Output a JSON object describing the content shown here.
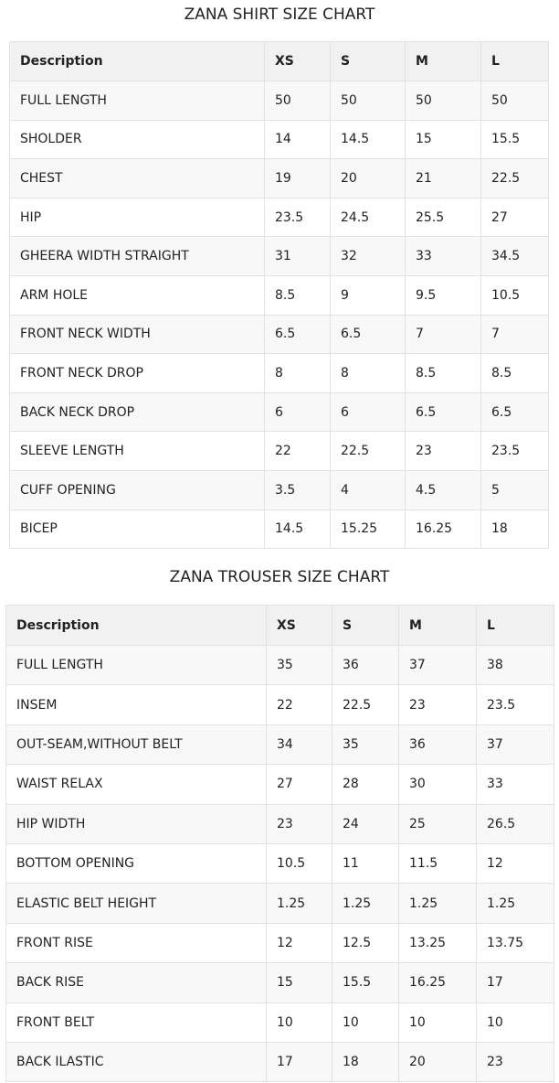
{
  "shirt": {
    "title": "ZANA SHIRT SIZE CHART",
    "header": [
      "Description",
      "XS",
      "S",
      "M",
      "L"
    ],
    "rows": [
      [
        "FULL LENGTH",
        "50",
        "50",
        "50",
        "50"
      ],
      [
        "SHOLDER",
        "14",
        "14.5",
        "15",
        "15.5"
      ],
      [
        "CHEST",
        "19",
        "20",
        "21",
        "22.5"
      ],
      [
        "HIP",
        "23.5",
        "24.5",
        "25.5",
        "27"
      ],
      [
        "GHEERA WIDTH STRAIGHT",
        "31",
        "32",
        "33",
        "34.5"
      ],
      [
        "ARM HOLE",
        "8.5",
        "9",
        "9.5",
        "10.5"
      ],
      [
        "FRONT NECK WIDTH",
        "6.5",
        "6.5",
        "7",
        "7"
      ],
      [
        "FRONT NECK DROP",
        "8",
        "8",
        "8.5",
        "8.5"
      ],
      [
        "BACK NECK DROP",
        "6",
        "6",
        "6.5",
        "6.5"
      ],
      [
        "SLEEVE LENGTH",
        "22",
        "22.5",
        "23",
        "23.5"
      ],
      [
        "CUFF OPENING",
        "3.5",
        "4",
        "4.5",
        "5"
      ],
      [
        "BICEP",
        "14.5",
        "15.25",
        "16.25",
        "18"
      ]
    ]
  },
  "trouser": {
    "title": "ZANA TROUSER SIZE CHART",
    "header": [
      "Description",
      "XS",
      "S",
      "M",
      "L"
    ],
    "rows": [
      [
        "FULL LENGTH",
        "35",
        "36",
        "37",
        "38"
      ],
      [
        "INSEM",
        "22",
        "22.5",
        "23",
        "23.5"
      ],
      [
        "OUT-SEAM,WITHOUT BELT",
        "34",
        "35",
        "36",
        "37"
      ],
      [
        "WAIST RELAX",
        "27",
        "28",
        "30",
        "33"
      ],
      [
        "HIP WIDTH",
        "23",
        "24",
        "25",
        "26.5"
      ],
      [
        "BOTTOM OPENING",
        "10.5",
        "11",
        "11.5",
        "12"
      ],
      [
        "ELASTIC BELT HEIGHT",
        "1.25",
        "1.25",
        "1.25",
        "1.25"
      ],
      [
        "FRONT RISE",
        "12",
        "12.5",
        "13.25",
        "13.75"
      ],
      [
        "BACK RISE",
        "15",
        "15.5",
        "16.25",
        "17"
      ],
      [
        "FRONT BELT",
        "10",
        "10",
        "10",
        "10"
      ],
      [
        "BACK ILASTIC",
        "17",
        "18",
        "20",
        "23"
      ]
    ]
  }
}
